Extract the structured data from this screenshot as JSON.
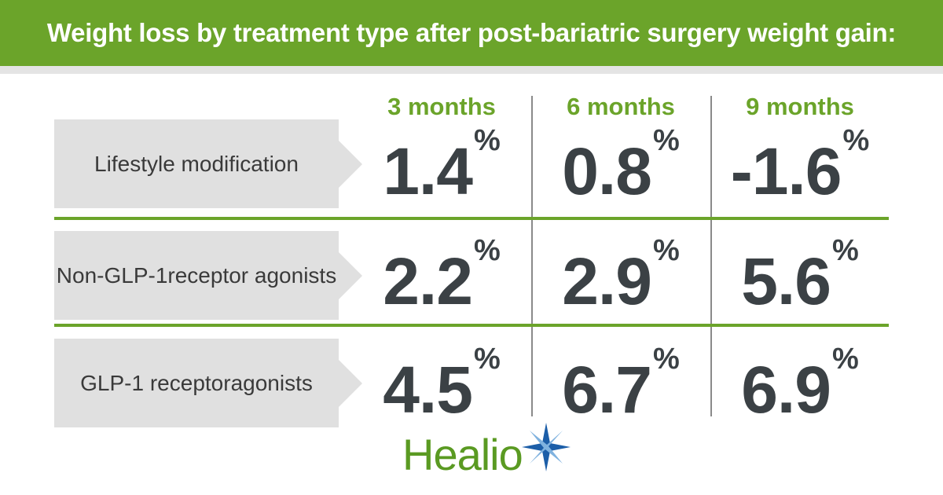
{
  "title": "Weight loss by treatment type after post-bariatric surgery weight gain:",
  "colors": {
    "green": "#6ba42a",
    "banner_strip": "#e4e4e4",
    "label_bg": "#e0e0e0",
    "divider": "#8a8a8a",
    "star_blue": "#1c5ea8",
    "star_light": "#7fb2df"
  },
  "chart_data": {
    "type": "table",
    "columns": [
      "3 months",
      "6 months",
      "9 months"
    ],
    "rows": [
      {
        "label_lines": [
          "Lifestyle modification"
        ],
        "values": [
          "1.4",
          "0.8",
          "-1.6"
        ]
      },
      {
        "label_lines": [
          "Non-GLP-1",
          "receptor agonists"
        ],
        "values": [
          "2.2",
          "2.9",
          "5.6"
        ]
      },
      {
        "label_lines": [
          "GLP-1 receptor",
          "agonists"
        ],
        "values": [
          "4.5",
          "6.7",
          "6.9"
        ]
      }
    ],
    "unit": "%"
  },
  "logo": {
    "text": "Healio",
    "icon": "star-compass-icon"
  }
}
